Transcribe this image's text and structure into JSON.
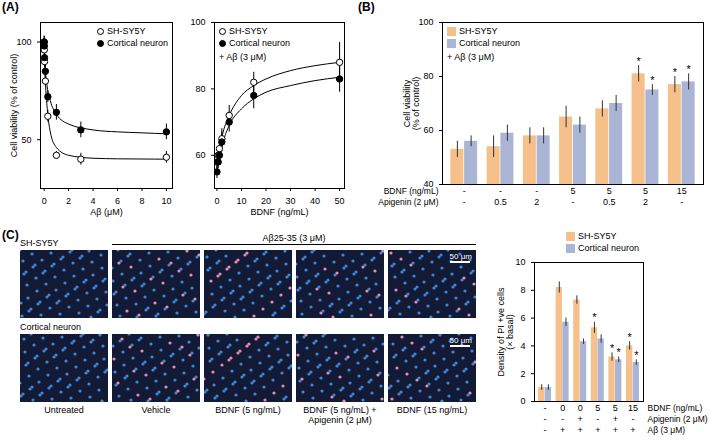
{
  "chart_data": [
    {
      "panel": "(A)",
      "type": "scatter",
      "x_label": "Aβ (μM)",
      "y_label": "Cell viability (% of control)",
      "xlim": [
        -0.3,
        10.5
      ],
      "xticks": [
        0,
        2,
        4,
        6,
        8,
        10
      ],
      "ylim": [
        25,
        110
      ],
      "yticks": [
        50,
        100
      ],
      "legend": "top-right",
      "series": [
        {
          "name": "SH-SY5Y",
          "color": "#000000",
          "marker": "open circle",
          "x": [
            0,
            0.01,
            0.03,
            0.1,
            0.3,
            1,
            3,
            10
          ],
          "values": [
            100,
            96,
            90,
            80,
            62,
            42,
            40,
            41
          ],
          "errors": [
            3,
            3,
            3,
            3,
            3,
            2,
            3,
            3
          ],
          "fit": {
            "x": [
              0,
              0.1,
              0.25,
              0.5,
              1,
              2,
              4,
              6,
              8,
              10
            ],
            "values": [
              100,
              80,
              66,
              54,
              46,
              42,
              40.5,
              40.2,
              40.1,
              40
            ]
          }
        },
        {
          "name": "Cortical neuron",
          "color": "#000000",
          "marker": "filled circle",
          "x": [
            0,
            0.01,
            0.03,
            0.1,
            0.3,
            1,
            3,
            10
          ],
          "values": [
            100,
            98,
            92,
            85,
            72,
            64,
            55,
            54
          ],
          "errors": [
            3,
            3,
            3,
            3,
            3,
            4,
            4,
            4
          ],
          "fit": {
            "x": [
              0,
              0.1,
              0.25,
              0.5,
              1,
              2,
              4,
              6,
              8,
              10
            ],
            "values": [
              100,
              86,
              77,
              70,
              63,
              58,
              55,
              54,
              53.5,
              53
            ]
          }
        }
      ]
    },
    {
      "type": "scatter",
      "x_label": "BDNF (ng/mL)",
      "annotations": [
        "+ Aβ (3 μM)"
      ],
      "xlim": [
        -1,
        52
      ],
      "xticks": [
        0,
        10,
        20,
        30,
        40,
        50
      ],
      "ylim": [
        50,
        100
      ],
      "yticks": [
        60,
        80,
        100
      ],
      "legend": "top-left",
      "series": [
        {
          "name": "SH-SY5Y",
          "color": "#000000",
          "marker": "open circle",
          "x": [
            0,
            0.5,
            1,
            2,
            5,
            15,
            50
          ],
          "values": [
            58,
            60,
            62,
            65,
            72,
            82,
            88
          ],
          "errors": [
            2,
            2,
            2,
            3,
            3,
            3,
            6
          ],
          "fit": {
            "x": [
              0,
              2.5,
              5,
              10,
              15,
              20,
              30,
              40,
              50
            ],
            "values": [
              58,
              67,
              72,
              78,
              81,
              83,
              85.5,
              87,
              88
            ]
          }
        },
        {
          "name": "Cortical neuron",
          "color": "#000000",
          "marker": "filled circle",
          "x": [
            0,
            0.5,
            1,
            2,
            5,
            15,
            50
          ],
          "values": [
            55,
            58,
            60,
            64,
            70,
            78,
            83
          ],
          "errors": [
            2,
            2,
            2,
            3,
            3,
            4,
            4
          ],
          "fit": {
            "x": [
              0,
              2.5,
              5,
              10,
              15,
              20,
              30,
              40,
              50
            ],
            "values": [
              55,
              64,
              69,
              74,
              77,
              79,
              81,
              82.5,
              83.5
            ]
          }
        }
      ]
    },
    {
      "panel": "(B)",
      "type": "bar",
      "y_label": "Cell viability (% of control)",
      "annotations": [
        "+ Aβ (3 μM)"
      ],
      "ylim": [
        40,
        100
      ],
      "yticks": [
        40,
        60,
        80,
        100
      ],
      "legend": "top-left",
      "category_rows": [
        {
          "label": "BDNF (ng/mL)",
          "values": [
            "-",
            "-",
            "-",
            "5",
            "5",
            "5",
            "15"
          ]
        },
        {
          "label": "Apigenin (2 μM)",
          "values": [
            "-",
            "0.5",
            "2",
            "-",
            "0.5",
            "2",
            "-"
          ]
        }
      ],
      "series": [
        {
          "name": "SH-SY5Y",
          "color": "#f5c08a",
          "values": [
            53,
            54,
            58,
            65,
            68,
            81,
            77
          ],
          "errors": [
            3,
            4,
            3,
            4,
            3,
            3,
            3
          ],
          "significance": [
            null,
            null,
            null,
            null,
            null,
            "*",
            "*"
          ]
        },
        {
          "name": "Cortical neuron",
          "color": "#aab4d4",
          "values": [
            56,
            59,
            58,
            62,
            70,
            75,
            78
          ],
          "errors": [
            2,
            3,
            3,
            3,
            3,
            2,
            3
          ],
          "significance": [
            null,
            null,
            null,
            null,
            null,
            "*",
            "*"
          ]
        }
      ]
    },
    {
      "type": "bar",
      "y_label": "Density of PI +ve cells (× basal)",
      "ylim": [
        0,
        10
      ],
      "yticks": [
        0,
        2,
        4,
        6,
        8,
        10
      ],
      "legend": "top-right",
      "category_rows": [
        {
          "label": "BDNF (ng/mL)",
          "values": [
            "-",
            "0",
            "0",
            "5",
            "5",
            "15"
          ]
        },
        {
          "label": "Apigenin (2 μM)",
          "values": [
            "-",
            "-",
            "+",
            "-",
            "+",
            "-"
          ]
        },
        {
          "label": "Aβ (3 μM)",
          "values": [
            "-",
            "+",
            "+",
            "+",
            "+",
            "+"
          ]
        }
      ],
      "series": [
        {
          "name": "SH-SY5Y",
          "color": "#f5c08a",
          "values": [
            1.0,
            8.2,
            7.3,
            5.3,
            3.2,
            4.0
          ],
          "errors": [
            0.2,
            0.4,
            0.3,
            0.4,
            0.3,
            0.3
          ],
          "significance": [
            null,
            null,
            null,
            "*",
            "*",
            "*"
          ]
        },
        {
          "name": "Cortical neuron",
          "color": "#aab4d4",
          "values": [
            1.0,
            5.7,
            4.3,
            4.5,
            3.0,
            2.8
          ],
          "errors": [
            0.2,
            0.3,
            0.2,
            0.3,
            0.2,
            0.2
          ],
          "significance": [
            null,
            null,
            null,
            null,
            "*",
            "*"
          ]
        }
      ]
    }
  ],
  "image_panel": {
    "panel": "(C)",
    "treatment_header": "Aβ25-35 (3 μM)",
    "rows": [
      "SH-SY5Y",
      "Cortical neuron"
    ],
    "columns": [
      "Untreated",
      "Vehicle",
      "BDNF (5 ng/mL)",
      "BDNF (5 ng/mL) + Apigenin (2 μM)",
      "BDNF (15 ng/mL)"
    ],
    "scale_bar": "50 μm"
  }
}
